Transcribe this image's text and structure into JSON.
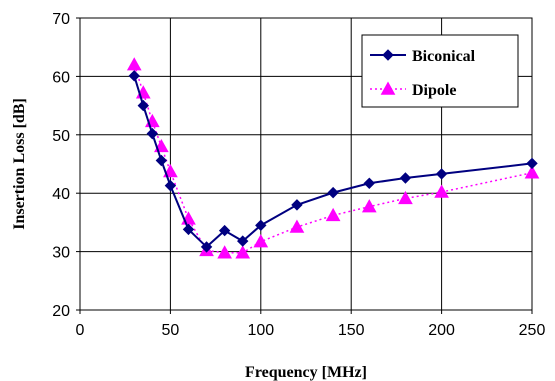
{
  "chart_data": {
    "type": "line",
    "title": "",
    "xlabel": "Frequency [MHz]",
    "ylabel": "Insertion Loss [dB]",
    "xlim": [
      0,
      250
    ],
    "ylim": [
      20,
      70
    ],
    "xticks": [
      0,
      50,
      100,
      150,
      200,
      250
    ],
    "yticks": [
      20,
      30,
      40,
      50,
      60,
      70
    ],
    "grid": true,
    "legend_position": "top-right",
    "series": [
      {
        "name": "Biconical",
        "color": "#000080",
        "line_style": "solid",
        "marker": "diamond",
        "x": [
          30,
          35,
          40,
          45,
          50,
          60,
          70,
          80,
          90,
          100,
          120,
          140,
          160,
          180,
          200,
          250
        ],
        "y": [
          60.1,
          55.0,
          50.2,
          45.6,
          41.3,
          33.8,
          30.8,
          33.6,
          31.8,
          34.5,
          38.0,
          40.1,
          41.7,
          42.6,
          43.3,
          45.1
        ]
      },
      {
        "name": "Dipole",
        "color": "#ff00ff",
        "line_style": "dotted",
        "marker": "triangle",
        "x": [
          30,
          35,
          40,
          45,
          50,
          60,
          70,
          80,
          90,
          100,
          120,
          140,
          160,
          180,
          200,
          250
        ],
        "y": [
          62.0,
          57.2,
          52.3,
          48.0,
          43.7,
          35.6,
          30.2,
          29.8,
          29.8,
          31.7,
          34.2,
          36.2,
          37.7,
          39.1,
          40.2,
          43.5
        ]
      }
    ]
  }
}
